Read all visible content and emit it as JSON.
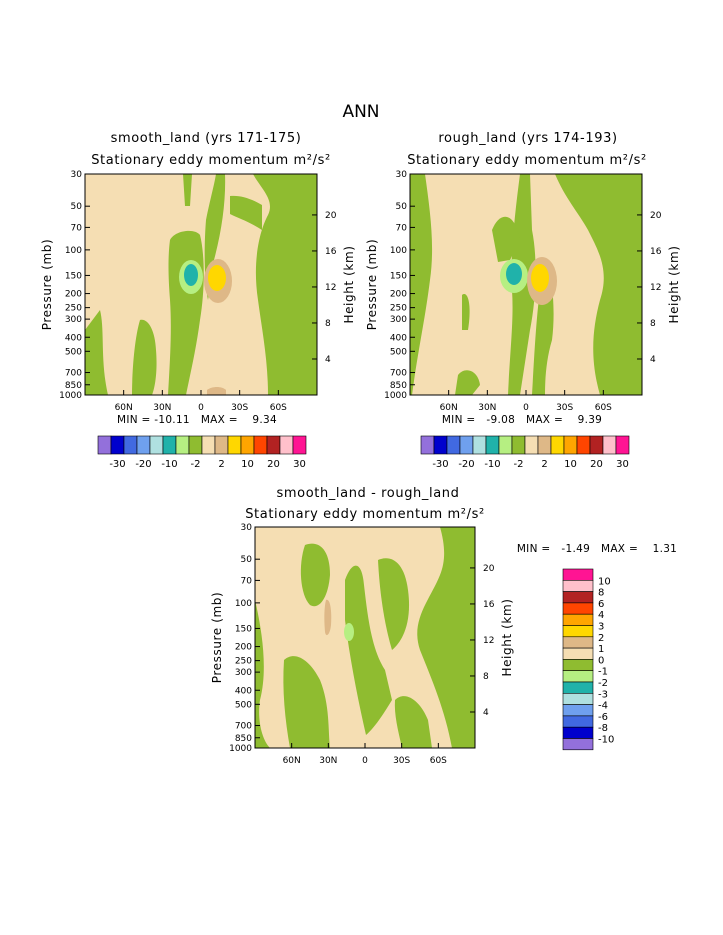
{
  "figure_title": "ANN",
  "colors": {
    "level_colors_12": [
      "#9370db",
      "#0000cd",
      "#4169e1",
      "#6fa0ee",
      "#afe0e0",
      "#20b2aa",
      "#b6ef82",
      "#8fbc30",
      "#f5deb3",
      "#deb887",
      "#ffd700",
      "#ffa500",
      "#ff4500",
      "#b22222",
      "#ffc0cb",
      "#ff1493"
    ],
    "levels_16_colors": [
      "#9370db",
      "#0000cd",
      "#4169e1",
      "#6fa0ee",
      "#afe0e0",
      "#20b2aa",
      "#b6ef82",
      "#8fbc30",
      "#f5deb3",
      "#deb887",
      "#ffd700",
      "#ffa500",
      "#ff4500",
      "#b22222",
      "#ffc0cb",
      "#ff1493"
    ],
    "diff_colors": [
      "#9370db",
      "#0000cd",
      "#4169e1",
      "#6fa0ee",
      "#afe0e0",
      "#20b2aa",
      "#b6ef82",
      "#8fbc30",
      "#f5deb3",
      "#deb887",
      "#ffd700",
      "#ffa500",
      "#ff4500",
      "#b22222",
      "#ffc0cb",
      "#ff1493"
    ]
  },
  "panels": [
    {
      "title": "smooth_land (yrs 171-175)",
      "subtitle": "Stationary eddy momentum m²/s²",
      "min_max": "MIN = -10.11   MAX =    9.34"
    },
    {
      "title": "rough_land (yrs 174-193)",
      "subtitle": "Stationary eddy momentum m²/s²",
      "min_max": "MIN =   -9.08   MAX =    9.39"
    },
    {
      "title": "smooth_land - rough_land",
      "subtitle": "Stationary eddy momentum m²/s²",
      "min_max": "MIN =   -1.49   MAX =    1.31"
    }
  ],
  "colorbar_top_labels": [
    "-30",
    "-20",
    "-10",
    "-2",
    "2",
    "10",
    "20",
    "30"
  ],
  "colorbar_diff_labels": [
    "10",
    "8",
    "6",
    "4",
    "3",
    "2",
    "1",
    "0",
    "-1",
    "-2",
    "-3",
    "-4",
    "-6",
    "-8",
    "-10"
  ],
  "chart_data": [
    {
      "type": "heatmap",
      "title": "smooth_land (yrs 171-175)",
      "subtitle": "Stationary eddy momentum m²/s²",
      "ylabel": "Pressure (mb)",
      "ylabel_right": "Height (km)",
      "x_ticks": [
        "60N",
        "30N",
        "0",
        "30S",
        "60S"
      ],
      "y_ticks": [
        "30",
        "50",
        "70",
        "100",
        "150",
        "200",
        "250",
        "300",
        "400",
        "500",
        "700",
        "850",
        "1000"
      ],
      "y_ticks_right": [
        "20",
        "16",
        "12",
        "8",
        "4"
      ],
      "min": -10.11,
      "max": 9.34,
      "contour_levels": [
        -30,
        -20,
        -10,
        -2,
        2,
        10,
        20,
        30
      ],
      "log_pressure_axis": true
    },
    {
      "type": "heatmap",
      "title": "rough_land (yrs 174-193)",
      "subtitle": "Stationary eddy momentum m²/s²",
      "ylabel": "Pressure (mb)",
      "ylabel_right": "Height (km)",
      "x_ticks": [
        "60N",
        "30N",
        "0",
        "30S",
        "60S"
      ],
      "y_ticks": [
        "30",
        "50",
        "70",
        "100",
        "150",
        "200",
        "250",
        "300",
        "400",
        "500",
        "700",
        "850",
        "1000"
      ],
      "y_ticks_right": [
        "20",
        "16",
        "12",
        "8",
        "4"
      ],
      "min": -9.08,
      "max": 9.39,
      "contour_levels": [
        -30,
        -20,
        -10,
        -2,
        2,
        10,
        20,
        30
      ],
      "log_pressure_axis": true
    },
    {
      "type": "heatmap",
      "title": "smooth_land - rough_land",
      "subtitle": "Stationary eddy momentum m²/s²",
      "ylabel": "Pressure (mb)",
      "ylabel_right": "Height (km)",
      "x_ticks": [
        "60N",
        "30N",
        "0",
        "30S",
        "60S"
      ],
      "y_ticks": [
        "30",
        "50",
        "70",
        "100",
        "150",
        "200",
        "250",
        "300",
        "400",
        "500",
        "700",
        "850",
        "1000"
      ],
      "y_ticks_right": [
        "20",
        "16",
        "12",
        "8",
        "4"
      ],
      "min": -1.49,
      "max": 1.31,
      "contour_levels": [
        -10,
        -8,
        -6,
        -4,
        -3,
        -2,
        -1,
        0,
        1,
        2,
        3,
        4,
        6,
        8,
        10
      ],
      "log_pressure_axis": true
    }
  ]
}
